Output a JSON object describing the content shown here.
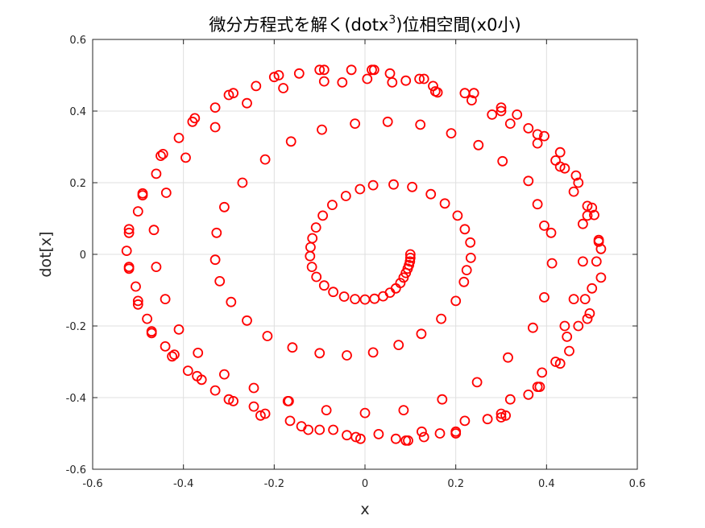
{
  "chart_data": {
    "type": "scatter",
    "title_parts": {
      "before": "微分方程式を解く(dotx",
      "superscript": "3",
      "after": ")位相空間(x0小)"
    },
    "xlabel": "x",
    "ylabel": "dot[x]",
    "xlim": [
      -0.6,
      0.6
    ],
    "ylim": [
      -0.6,
      0.6
    ],
    "xticks": [
      "-0.6",
      "-0.4",
      "-0.2",
      "0",
      "0.2",
      "0.4",
      "0.6"
    ],
    "yticks": [
      "-0.6",
      "-0.4",
      "-0.2",
      "0",
      "0.2",
      "0.4",
      "0.6"
    ],
    "grid": true,
    "marker": "circle",
    "marker_color": "#ff0000",
    "points": [
      [
        0.1,
        0.0
      ],
      [
        0.1,
        -0.01
      ],
      [
        0.099,
        -0.02
      ],
      [
        0.097,
        -0.03
      ],
      [
        0.094,
        -0.04
      ],
      [
        0.09,
        -0.052
      ],
      [
        0.085,
        -0.065
      ],
      [
        0.078,
        -0.08
      ],
      [
        0.068,
        -0.095
      ],
      [
        0.055,
        -0.107
      ],
      [
        0.04,
        -0.117
      ],
      [
        0.021,
        -0.124
      ],
      [
        0.0,
        -0.126
      ],
      [
        -0.022,
        -0.125
      ],
      [
        -0.046,
        -0.118
      ],
      [
        -0.07,
        -0.105
      ],
      [
        -0.09,
        -0.087
      ],
      [
        -0.107,
        -0.063
      ],
      [
        -0.117,
        -0.035
      ],
      [
        -0.121,
        -0.005
      ],
      [
        -0.12,
        0.02
      ],
      [
        -0.116,
        0.045
      ],
      [
        -0.108,
        0.075
      ],
      [
        -0.093,
        0.108
      ],
      [
        -0.072,
        0.138
      ],
      [
        -0.042,
        0.163
      ],
      [
        -0.011,
        0.182
      ],
      [
        0.018,
        0.193
      ],
      [
        0.063,
        0.195
      ],
      [
        0.104,
        0.188
      ],
      [
        0.145,
        0.168
      ],
      [
        0.176,
        0.142
      ],
      [
        0.204,
        0.108
      ],
      [
        0.22,
        0.07
      ],
      [
        0.232,
        0.033
      ],
      [
        0.233,
        -0.01
      ],
      [
        0.224,
        -0.044
      ],
      [
        0.218,
        -0.077
      ],
      [
        0.2,
        -0.13
      ],
      [
        0.168,
        -0.18
      ],
      [
        0.124,
        -0.222
      ],
      [
        0.074,
        -0.253
      ],
      [
        0.018,
        -0.274
      ],
      [
        -0.04,
        -0.282
      ],
      [
        -0.1,
        -0.276
      ],
      [
        -0.16,
        -0.26
      ],
      [
        -0.215,
        -0.228
      ],
      [
        -0.26,
        -0.185
      ],
      [
        -0.295,
        -0.133
      ],
      [
        -0.32,
        -0.075
      ],
      [
        -0.33,
        -0.015
      ],
      [
        -0.327,
        0.06
      ],
      [
        -0.31,
        0.132
      ],
      [
        -0.27,
        0.2
      ],
      [
        -0.22,
        0.265
      ],
      [
        -0.163,
        0.315
      ],
      [
        -0.095,
        0.348
      ],
      [
        -0.022,
        0.365
      ],
      [
        0.05,
        0.37
      ],
      [
        0.122,
        0.362
      ],
      [
        0.19,
        0.338
      ],
      [
        0.25,
        0.305
      ],
      [
        0.303,
        0.26
      ],
      [
        0.36,
        0.205
      ],
      [
        0.38,
        0.14
      ],
      [
        0.395,
        0.08
      ],
      [
        0.41,
        0.06
      ],
      [
        0.412,
        -0.025
      ],
      [
        0.395,
        -0.12
      ],
      [
        0.37,
        -0.205
      ],
      [
        0.315,
        -0.288
      ],
      [
        0.247,
        -0.357
      ],
      [
        0.17,
        -0.405
      ],
      [
        0.085,
        -0.435
      ],
      [
        0.0,
        -0.443
      ],
      [
        -0.085,
        -0.435
      ],
      [
        -0.168,
        -0.41
      ],
      [
        -0.245,
        -0.373
      ],
      [
        -0.31,
        -0.335
      ],
      [
        -0.368,
        -0.275
      ],
      [
        -0.41,
        -0.21
      ],
      [
        -0.44,
        -0.125
      ],
      [
        -0.46,
        -0.035
      ],
      [
        -0.465,
        0.068
      ],
      [
        -0.438,
        0.172
      ],
      [
        -0.395,
        0.27
      ],
      [
        -0.33,
        0.355
      ],
      [
        -0.26,
        0.422
      ],
      [
        -0.18,
        0.464
      ],
      [
        -0.09,
        0.483
      ],
      [
        0.005,
        0.49
      ],
      [
        0.09,
        0.485
      ],
      [
        0.16,
        0.452
      ],
      [
        0.235,
        0.43
      ],
      [
        0.28,
        0.39
      ],
      [
        0.32,
        0.365
      ],
      [
        0.36,
        0.352
      ],
      [
        0.38,
        0.31
      ],
      [
        0.42,
        0.262
      ],
      [
        0.43,
        0.245
      ],
      [
        0.46,
        0.175
      ],
      [
        0.47,
        0.2
      ],
      [
        0.48,
        0.085
      ],
      [
        0.49,
        0.108
      ],
      [
        0.48,
        -0.02
      ],
      [
        0.46,
        -0.125
      ],
      [
        0.44,
        -0.2
      ],
      [
        0.445,
        -0.23
      ],
      [
        0.42,
        -0.3
      ],
      [
        0.38,
        -0.37
      ],
      [
        0.36,
        -0.392
      ],
      [
        0.32,
        -0.405
      ],
      [
        0.3,
        -0.445
      ],
      [
        0.27,
        -0.46
      ],
      [
        0.22,
        -0.465
      ],
      [
        0.2,
        -0.495
      ],
      [
        0.165,
        -0.5
      ],
      [
        0.125,
        -0.495
      ],
      [
        0.095,
        -0.52
      ],
      [
        0.068,
        -0.515
      ],
      [
        0.03,
        -0.502
      ],
      [
        -0.02,
        -0.51
      ],
      [
        -0.04,
        -0.505
      ],
      [
        -0.07,
        -0.49
      ],
      [
        -0.125,
        -0.49
      ],
      [
        -0.14,
        -0.48
      ],
      [
        -0.165,
        -0.465
      ],
      [
        -0.17,
        -0.41
      ],
      [
        -0.23,
        -0.45
      ],
      [
        -0.245,
        -0.425
      ],
      [
        -0.3,
        -0.405
      ],
      [
        -0.33,
        -0.38
      ],
      [
        -0.37,
        -0.34
      ],
      [
        -0.39,
        -0.325
      ],
      [
        -0.425,
        -0.285
      ],
      [
        -0.44,
        -0.257
      ],
      [
        -0.47,
        -0.215
      ],
      [
        -0.48,
        -0.18
      ],
      [
        -0.5,
        -0.14
      ],
      [
        -0.505,
        -0.09
      ],
      [
        -0.52,
        -0.04
      ],
      [
        -0.525,
        0.01
      ],
      [
        -0.52,
        0.06
      ],
      [
        -0.5,
        0.12
      ],
      [
        -0.49,
        0.17
      ],
      [
        -0.46,
        0.225
      ],
      [
        -0.445,
        0.28
      ],
      [
        -0.41,
        0.325
      ],
      [
        -0.38,
        0.37
      ],
      [
        -0.33,
        0.41
      ],
      [
        -0.3,
        0.445
      ],
      [
        -0.24,
        0.47
      ],
      [
        -0.2,
        0.495
      ],
      [
        -0.145,
        0.505
      ],
      [
        -0.09,
        0.515
      ],
      [
        -0.05,
        0.48
      ],
      [
        -0.03,
        0.515
      ],
      [
        0.015,
        0.515
      ],
      [
        0.055,
        0.505
      ],
      [
        0.06,
        0.48
      ],
      [
        0.12,
        0.49
      ],
      [
        0.15,
        0.47
      ],
      [
        0.155,
        0.455
      ],
      [
        0.22,
        0.45
      ],
      [
        0.3,
        0.4
      ],
      [
        0.335,
        0.39
      ],
      [
        0.395,
        0.33
      ],
      [
        0.43,
        0.285
      ],
      [
        0.465,
        0.22
      ],
      [
        0.5,
        0.13
      ],
      [
        0.505,
        0.11
      ],
      [
        0.515,
        0.04
      ],
      [
        0.52,
        0.015
      ],
      [
        0.51,
        -0.02
      ],
      [
        0.52,
        -0.065
      ],
      [
        0.5,
        -0.095
      ],
      [
        0.485,
        -0.125
      ],
      [
        0.495,
        -0.165
      ],
      [
        0.49,
        -0.18
      ],
      [
        0.47,
        -0.2
      ],
      [
        0.45,
        -0.27
      ],
      [
        0.43,
        -0.305
      ],
      [
        0.39,
        -0.33
      ],
      [
        0.385,
        -0.37
      ],
      [
        0.31,
        -0.45
      ],
      [
        0.3,
        -0.455
      ],
      [
        0.2,
        -0.5
      ],
      [
        0.13,
        -0.51
      ],
      [
        0.09,
        -0.52
      ],
      [
        -0.01,
        -0.515
      ],
      [
        -0.1,
        -0.49
      ],
      [
        -0.22,
        -0.445
      ],
      [
        -0.29,
        -0.41
      ],
      [
        -0.36,
        -0.35
      ],
      [
        -0.42,
        -0.28
      ],
      [
        -0.47,
        -0.22
      ],
      [
        -0.5,
        -0.13
      ],
      [
        -0.52,
        -0.035
      ],
      [
        -0.52,
        0.07
      ],
      [
        -0.49,
        0.165
      ],
      [
        -0.45,
        0.275
      ],
      [
        -0.375,
        0.38
      ],
      [
        -0.29,
        0.45
      ],
      [
        -0.19,
        0.5
      ],
      [
        -0.1,
        0.515
      ],
      [
        0.02,
        0.515
      ],
      [
        0.13,
        0.49
      ],
      [
        0.24,
        0.45
      ],
      [
        0.3,
        0.41
      ],
      [
        0.38,
        0.335
      ],
      [
        0.44,
        0.24
      ],
      [
        0.49,
        0.135
      ],
      [
        0.515,
        0.035
      ]
    ]
  }
}
